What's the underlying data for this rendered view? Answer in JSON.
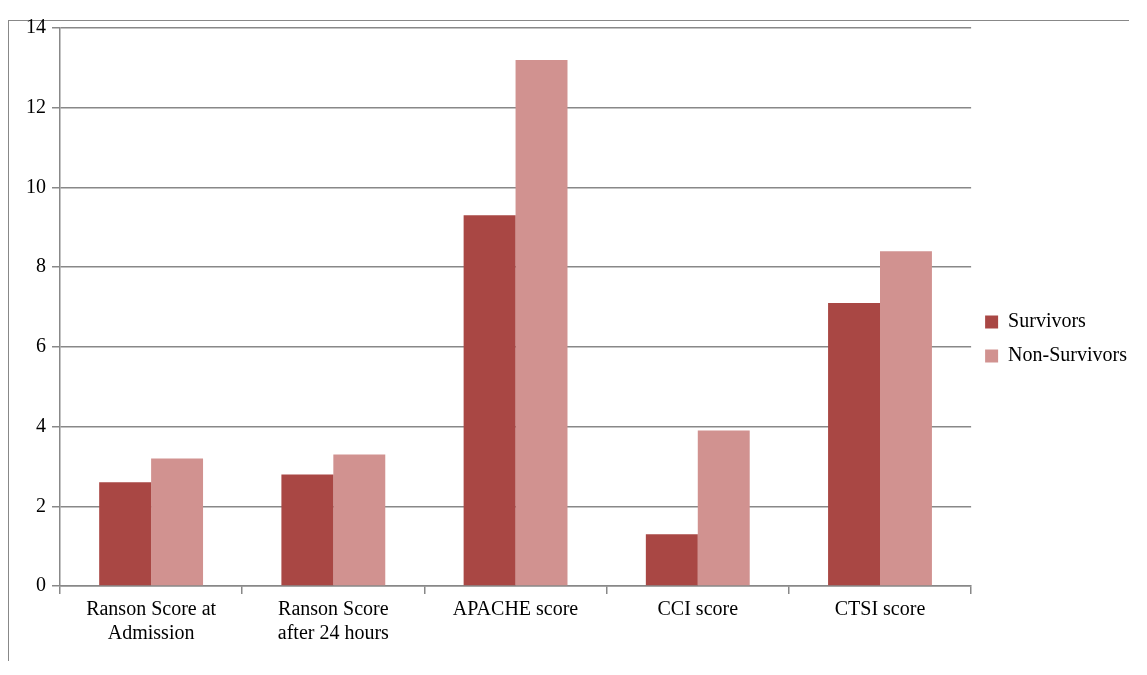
{
  "chart_data": {
    "type": "bar",
    "categories": [
      "Ranson Score at Admission",
      "Ranson Score after 24 hours",
      "APACHE score",
      "CCI score",
      "CTSI score"
    ],
    "series": [
      {
        "name": "Survivors",
        "color": "#a94744",
        "values": [
          2.6,
          2.8,
          9.3,
          1.3,
          7.1
        ]
      },
      {
        "name": "Non-Survivors",
        "color": "#d19290",
        "values": [
          3.2,
          3.3,
          13.2,
          3.9,
          8.4
        ]
      }
    ],
    "ylim": [
      0,
      14
    ],
    "yticks": [
      0,
      2,
      4,
      6,
      8,
      10,
      12,
      14
    ],
    "grid": "y",
    "legend": "right"
  }
}
